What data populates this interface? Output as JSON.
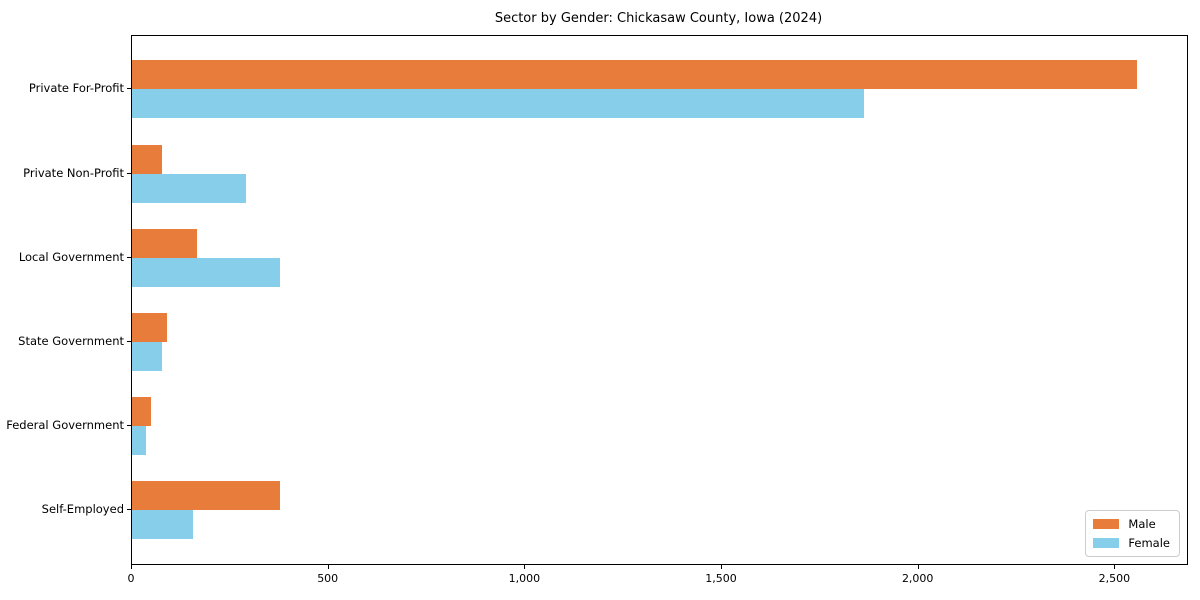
{
  "chart_data": {
    "type": "bar",
    "orientation": "horizontal",
    "title": "Sector by Gender: Chickasaw County, Iowa (2024)",
    "categories": [
      "Private For-Profit",
      "Private Non-Profit",
      "Local Government",
      "State Government",
      "Federal Government",
      "Self-Employed"
    ],
    "series": [
      {
        "name": "Male",
        "color": "#e87d3b",
        "values": [
          2554,
          75,
          165,
          90,
          47,
          376
        ]
      },
      {
        "name": "Female",
        "color": "#87ceeb",
        "values": [
          1860,
          289,
          376,
          76,
          35,
          155
        ]
      }
    ],
    "xlabel": "",
    "ylabel": "",
    "xlim": [
      0,
      2682
    ],
    "x_ticks": [
      0,
      500,
      1000,
      1500,
      2000,
      2500
    ],
    "x_tick_labels": [
      "0",
      "500",
      "1,000",
      "1,500",
      "2,000",
      "2,500"
    ],
    "legend": {
      "position": "lower-right",
      "entries": [
        "Male",
        "Female"
      ]
    },
    "grid": false,
    "background": "#ffffff"
  }
}
